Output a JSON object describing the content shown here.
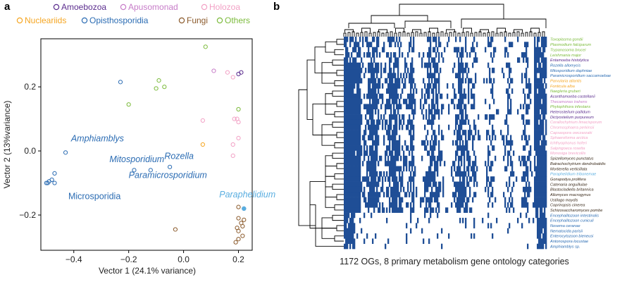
{
  "panels": {
    "a": "a",
    "b": "b"
  },
  "chart_data": [
    {
      "type": "scatter",
      "panel": "a",
      "xlabel": "Vector 1 (24.1% variance)",
      "ylabel": "Vector 2 (13%variance)",
      "xlim": [
        -0.52,
        0.25
      ],
      "ylim": [
        -0.31,
        0.35
      ],
      "xticks": [
        {
          "v": -0.4,
          "label": "−0.4"
        },
        {
          "v": -0.2,
          "label": "−0.2"
        },
        {
          "v": 0.0,
          "label": "0.0"
        },
        {
          "v": 0.2,
          "label": "0.2"
        }
      ],
      "yticks": [
        {
          "v": 0.2,
          "label": "0.2"
        },
        {
          "v": 0.0,
          "label": "0.0"
        },
        {
          "v": -0.2,
          "label": "−0.2"
        }
      ],
      "grid": false,
      "legend_position": "top",
      "series": [
        {
          "name": "Amoebozoa",
          "color": "#5b2d8e",
          "points": [
            [
              0.2,
              0.24
            ],
            [
              0.21,
              0.245
            ]
          ]
        },
        {
          "name": "Apusomonad",
          "color": "#c77cc8",
          "points": [
            [
              0.11,
              0.25
            ]
          ]
        },
        {
          "name": "Holozoa",
          "color": "#f2a1c5",
          "points": [
            [
              0.16,
              0.245
            ],
            [
              0.18,
              0.23
            ],
            [
              0.07,
              0.095
            ],
            [
              0.2,
              0.09
            ],
            [
              0.2,
              0.04
            ],
            [
              0.18,
              0.02
            ],
            [
              0.18,
              -0.015
            ],
            [
              0.185,
              0.1
            ],
            [
              0.195,
              0.1
            ]
          ]
        },
        {
          "name": "Nucleariids",
          "color": "#f5a623",
          "points": [
            [
              0.07,
              0.02
            ]
          ]
        },
        {
          "name": "Opisthosporidia",
          "color": "#2b6cb3",
          "points": [
            [
              -0.23,
              0.215
            ],
            [
              -0.43,
              -0.005
            ],
            [
              -0.18,
              -0.06
            ],
            [
              -0.12,
              -0.06
            ],
            [
              -0.05,
              -0.05
            ],
            [
              -0.47,
              -0.07
            ],
            [
              -0.48,
              -0.09
            ],
            [
              -0.49,
              -0.095
            ],
            [
              -0.495,
              -0.1
            ],
            [
              -0.5,
              -0.1
            ],
            [
              -0.47,
              -0.1
            ],
            [
              0.22,
              -0.18
            ]
          ]
        },
        {
          "name": "Fungi",
          "color": "#8b5a2b",
          "points": [
            [
              -0.03,
              -0.245
            ],
            [
              0.2,
              -0.175
            ],
            [
              0.2,
              -0.21
            ],
            [
              0.22,
              -0.215
            ],
            [
              0.21,
              -0.225
            ],
            [
              0.215,
              -0.235
            ],
            [
              0.195,
              -0.24
            ],
            [
              0.2,
              -0.25
            ],
            [
              0.215,
              -0.265
            ],
            [
              0.2,
              -0.275
            ],
            [
              0.19,
              -0.285
            ]
          ]
        },
        {
          "name": "Others",
          "color": "#7cbb3c",
          "points": [
            [
              0.08,
              0.325
            ],
            [
              -0.09,
              0.22
            ],
            [
              -0.1,
              0.195
            ],
            [
              -0.07,
              0.2
            ],
            [
              -0.2,
              0.145
            ],
            [
              0.2,
              0.13
            ]
          ]
        }
      ],
      "annotations": [
        {
          "text": "Amphiamblys",
          "color": "#2b6cb3",
          "x": -0.41,
          "y": 0.03
        },
        {
          "text": "Mitosporidium",
          "color": "#2b6cb3",
          "x": -0.27,
          "y": -0.035
        },
        {
          "text": "Rozella",
          "color": "#2b6cb3",
          "x": -0.07,
          "y": -0.025
        },
        {
          "text": "Paramicrosporidium",
          "color": "#2b6cb3",
          "x": -0.2,
          "y": -0.085
        },
        {
          "text": "Microsporidia",
          "color": "#2b6cb3",
          "x": -0.42,
          "y": -0.15
        },
        {
          "text": "Paraphelidium",
          "color": "#5aaee0",
          "x": 0.13,
          "y": -0.145
        }
      ]
    },
    {
      "type": "heatmap",
      "panel": "b",
      "xlabel": "1172 OGs, 8 primary metabolism gene ontology categories",
      "columns": 1172,
      "cmap": [
        "#ffffff",
        "#1f4e96"
      ],
      "rows": [
        {
          "name": "Toxoplasma gondii",
          "color": "#7cbb3c",
          "density": 0.45
        },
        {
          "name": "Plasmodium falciparum",
          "color": "#7cbb3c",
          "density": 0.42
        },
        {
          "name": "Trypanosoma brucei",
          "color": "#7cbb3c",
          "density": 0.48
        },
        {
          "name": "Leishmania major",
          "color": "#7cbb3c",
          "density": 0.5
        },
        {
          "name": "Entamoeba histolytica",
          "color": "#5b2d8e",
          "density": 0.45
        },
        {
          "name": "Rozella allomycis",
          "color": "#2b6cb3",
          "density": 0.55
        },
        {
          "name": "Mitosporidium daphniae",
          "color": "#2b6cb3",
          "density": 0.62
        },
        {
          "name": "Paramicrosporidium saccamoebae",
          "color": "#2b6cb3",
          "density": 0.6
        },
        {
          "name": "Parvularia atlantis",
          "color": "#f5a623",
          "density": 0.6
        },
        {
          "name": "Fonticula alba",
          "color": "#f5a623",
          "density": 0.62
        },
        {
          "name": "Naegleria gruberi",
          "color": "#7cbb3c",
          "density": 0.55
        },
        {
          "name": "Acanthamoeba castellanii",
          "color": "#5b2d8e",
          "density": 0.68
        },
        {
          "name": "Thecamonas trahens",
          "color": "#c77cc8",
          "density": 0.66
        },
        {
          "name": "Phytophthora infestans",
          "color": "#7cbb3c",
          "density": 0.68
        },
        {
          "name": "Heterostelium pallidum",
          "color": "#5b2d8e",
          "density": 0.62
        },
        {
          "name": "Dictyostelium purpureum",
          "color": "#5b2d8e",
          "density": 0.64
        },
        {
          "name": "Corallochytrium limacisporum",
          "color": "#f2a1c5",
          "density": 0.66
        },
        {
          "name": "Chromosphaera perkinsii",
          "color": "#f2a1c5",
          "density": 0.66
        },
        {
          "name": "Capsaspora owczarzaki",
          "color": "#f2a1c5",
          "density": 0.64
        },
        {
          "name": "Sphaeroforma arctica",
          "color": "#f2a1c5",
          "density": 0.66
        },
        {
          "name": "Ichthyophonus hoferi",
          "color": "#f2a1c5",
          "density": 0.62
        },
        {
          "name": "Salpingoeca rosetta",
          "color": "#f2a1c5",
          "density": 0.6
        },
        {
          "name": "Monosiga brevicollis",
          "color": "#f2a1c5",
          "density": 0.58
        },
        {
          "name": "Spizellomyces punctatus",
          "color": "#3a2a1a",
          "density": 0.7
        },
        {
          "name": "Batrachochytrium dendrobatidis",
          "color": "#3a2a1a",
          "density": 0.68
        },
        {
          "name": "Mortierella verticillata",
          "color": "#3a2a1a",
          "density": 0.7
        },
        {
          "name": "Paraphelidium tribonemae",
          "color": "#5aaee0",
          "density": 0.62
        },
        {
          "name": "Gonapodya prolifera",
          "color": "#3a2a1a",
          "density": 0.7
        },
        {
          "name": "Catenaria anguillulae",
          "color": "#3a2a1a",
          "density": 0.68
        },
        {
          "name": "Blastocladiella britannica",
          "color": "#3a2a1a",
          "density": 0.68
        },
        {
          "name": "Allomyces macrogynus",
          "color": "#3a2a1a",
          "density": 0.7
        },
        {
          "name": "Ustilago maydis",
          "color": "#3a2a1a",
          "density": 0.66
        },
        {
          "name": "Coprinopsis cinerea",
          "color": "#3a2a1a",
          "density": 0.68
        },
        {
          "name": "Schizosaccharomyces pombe",
          "color": "#3a2a1a",
          "density": 0.6
        },
        {
          "name": "Encephalitozoon intestinalis",
          "color": "#2b6cb3",
          "density": 0.12
        },
        {
          "name": "Encephalitozoon cuniculi",
          "color": "#2b6cb3",
          "density": 0.12
        },
        {
          "name": "Nosema ceranae",
          "color": "#2b6cb3",
          "density": 0.1
        },
        {
          "name": "Nematocida parisii",
          "color": "#2b6cb3",
          "density": 0.1
        },
        {
          "name": "Enterocytozoon bieneusi",
          "color": "#2b6cb3",
          "density": 0.08
        },
        {
          "name": "Antonospora locustae",
          "color": "#2b6cb3",
          "density": 0.1
        },
        {
          "name": "Amphiamblys sp.",
          "color": "#2b6cb3",
          "density": 0.08
        }
      ]
    }
  ]
}
